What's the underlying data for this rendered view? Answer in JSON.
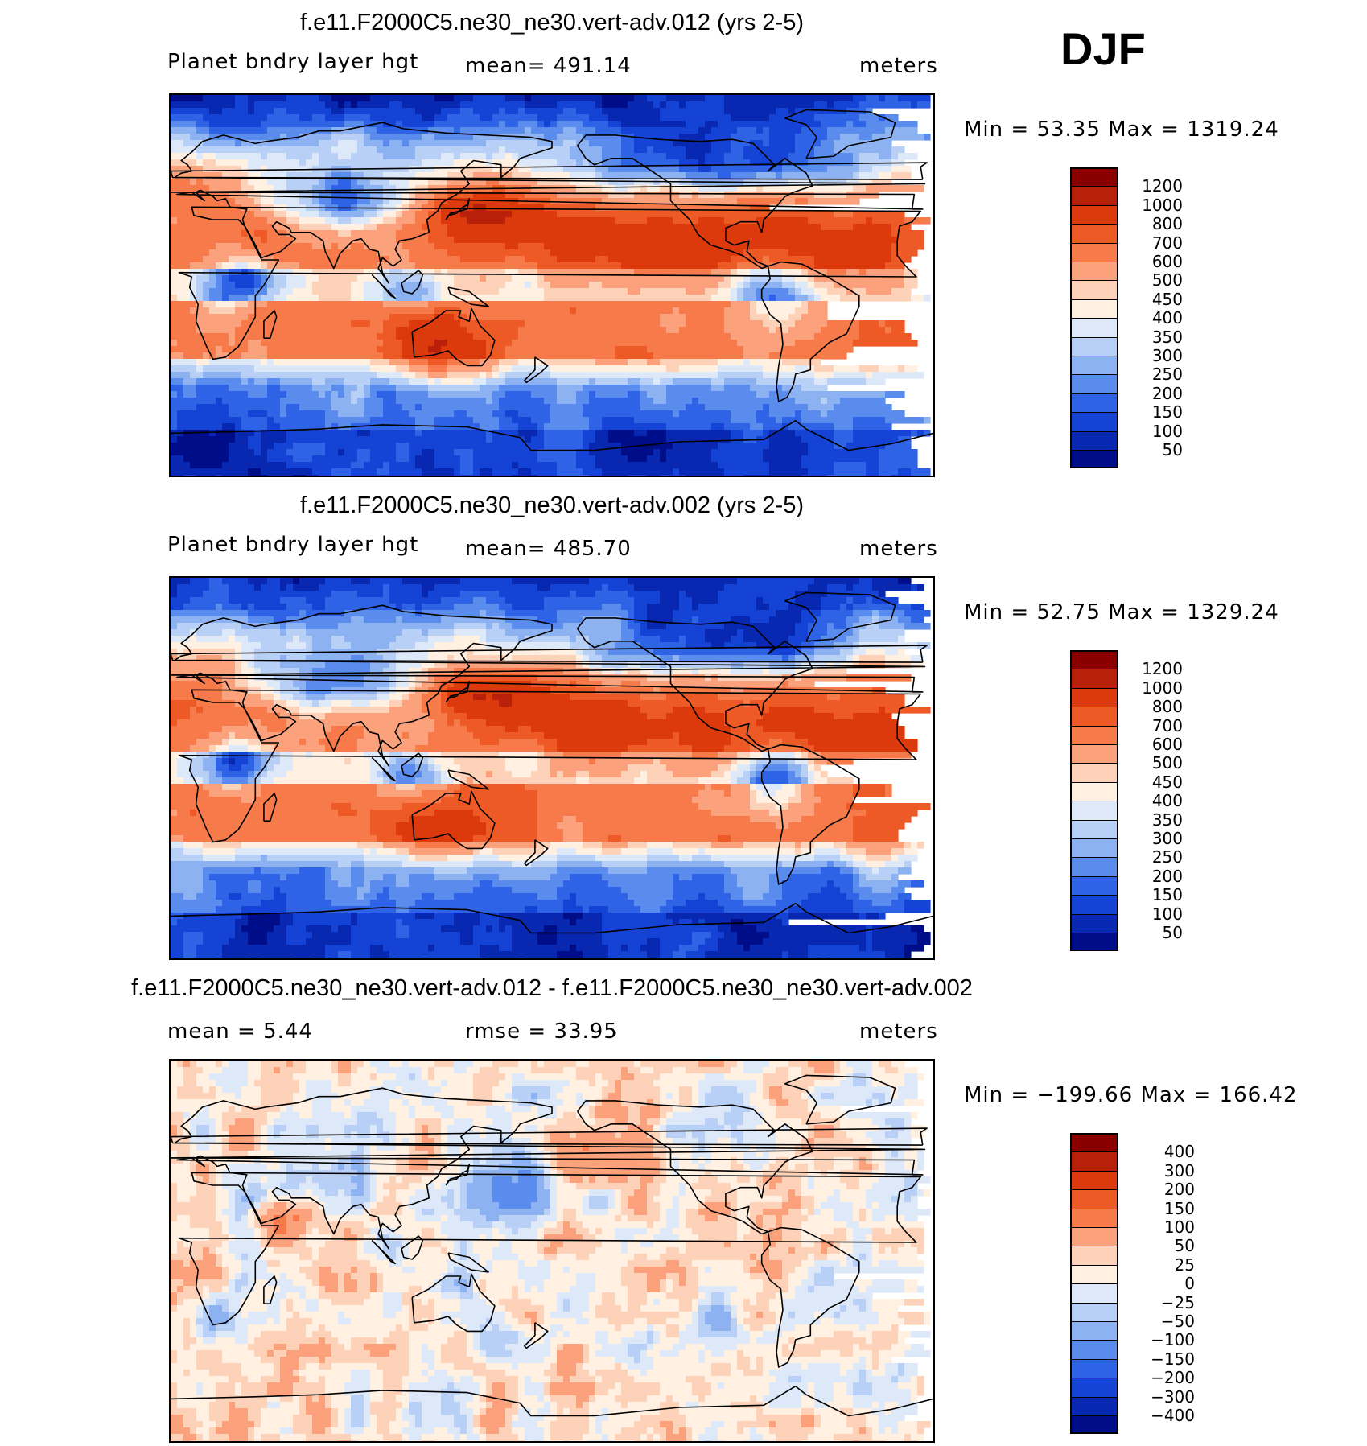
{
  "season": "DJF",
  "panels": [
    {
      "title": "f.e11.F2000C5.ne30_ne30.vert-adv.012 (yrs 2-5)",
      "left_label": "Planet bndry layer hgt",
      "center_label": "mean=  491.14",
      "units": "meters",
      "minmax": "Min =   53.35 Max =  1319.24",
      "colorbar_labels": [
        "1200",
        "1000",
        "800",
        "700",
        "600",
        "500",
        "450",
        "400",
        "350",
        "300",
        "250",
        "200",
        "150",
        "100",
        "50"
      ]
    },
    {
      "title": "f.e11.F2000C5.ne30_ne30.vert-adv.002 (yrs 2-5)",
      "left_label": "Planet bndry layer hgt",
      "center_label": "mean=  485.70",
      "units": "meters",
      "minmax": "Min =   52.75 Max =  1329.24",
      "colorbar_labels": [
        "1200",
        "1000",
        "800",
        "700",
        "600",
        "500",
        "450",
        "400",
        "350",
        "300",
        "250",
        "200",
        "150",
        "100",
        "50"
      ]
    },
    {
      "title": "f.e11.F2000C5.ne30_ne30.vert-adv.012 - f.e11.F2000C5.ne30_ne30.vert-adv.002",
      "left_label": "mean =    5.44",
      "center_label": "rmse =   33.95",
      "units": "meters",
      "minmax": "Min = −199.66 Max =  166.42",
      "colorbar_labels": [
        "400",
        "300",
        "200",
        "150",
        "100",
        "50",
        "25",
        "0",
        "−25",
        "−50",
        "−100",
        "−150",
        "−200",
        "−300",
        "−400"
      ]
    }
  ],
  "colors": {
    "abs_scale": [
      "#8a0000",
      "#b8200a",
      "#dc3a0c",
      "#ee5a26",
      "#f77b4a",
      "#fba27c",
      "#fdd2b8",
      "#fff0e2",
      "#dde9f8",
      "#b8d0f5",
      "#8db2f2",
      "#5a8cee",
      "#2e63e6",
      "#1443d6",
      "#0828b2",
      "#000d88"
    ],
    "diff_scale": [
      "#8a0000",
      "#b8200a",
      "#dc3a0c",
      "#ee5a26",
      "#f77b4a",
      "#fba27c",
      "#fdd2b8",
      "#fff0e2",
      "#dde9f8",
      "#b8d0f5",
      "#8db2f2",
      "#5a8cee",
      "#2e63e6",
      "#1443d6",
      "#0828b2",
      "#000d88"
    ]
  }
}
